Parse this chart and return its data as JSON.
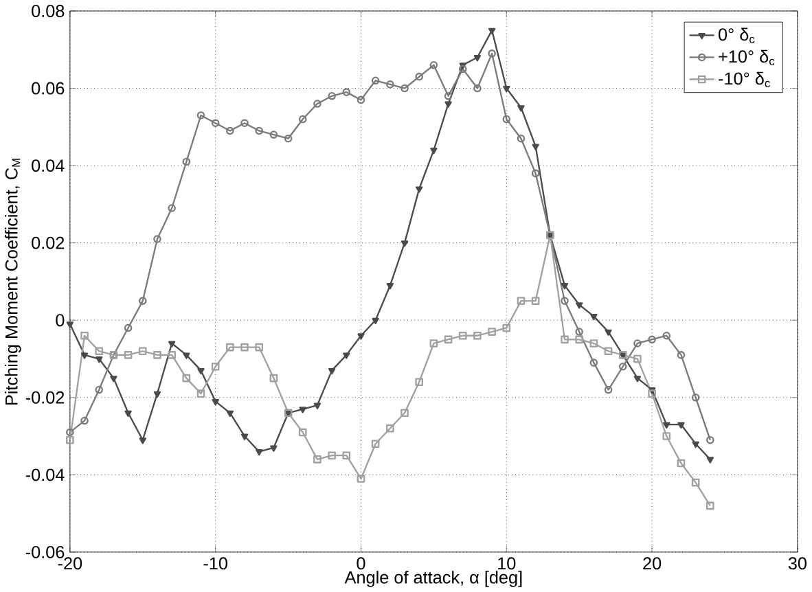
{
  "chart_data": {
    "type": "line",
    "xlabel": "Angle of attack, α [deg]",
    "ylabel": "Pitching Moment Coefficient, C$_{M}$",
    "x": [
      -20,
      -19,
      -18,
      -17,
      -16,
      -15,
      -14,
      -13,
      -12,
      -11,
      -10,
      -9,
      -8,
      -7,
      -6,
      -5,
      -4,
      -3,
      -2,
      -1,
      0,
      1,
      2,
      3,
      4,
      5,
      6,
      7,
      8,
      9,
      10,
      11,
      12,
      13,
      14,
      15,
      16,
      17,
      18,
      19,
      20,
      21,
      22,
      23,
      24
    ],
    "series": [
      {
        "name": "0° δ$_{c}$",
        "color": "#4a4a4a",
        "marker": "triangle",
        "values": [
          -0.001,
          -0.009,
          -0.01,
          -0.015,
          -0.024,
          -0.031,
          -0.019,
          -0.006,
          -0.009,
          -0.013,
          -0.021,
          -0.024,
          -0.03,
          -0.034,
          -0.033,
          -0.024,
          -0.023,
          -0.022,
          -0.013,
          -0.009,
          -0.004,
          0.0,
          0.009,
          0.02,
          0.034,
          0.044,
          0.056,
          0.066,
          0.068,
          0.075,
          0.06,
          0.055,
          0.045,
          0.022,
          0.009,
          0.004,
          0.001,
          -0.003,
          -0.009,
          -0.015,
          -0.018,
          -0.027,
          -0.027,
          -0.032,
          -0.036
        ]
      },
      {
        "name": "+10° δ$_{c}$",
        "color": "#7a7a7a",
        "marker": "circle",
        "values": [
          -0.029,
          -0.026,
          -0.018,
          -0.009,
          -0.002,
          0.005,
          0.021,
          0.029,
          0.041,
          0.053,
          0.051,
          0.049,
          0.051,
          0.049,
          0.048,
          0.047,
          0.052,
          0.056,
          0.058,
          0.059,
          0.057,
          0.062,
          0.061,
          0.06,
          0.063,
          0.066,
          0.058,
          0.065,
          0.06,
          0.069,
          0.052,
          0.047,
          0.038,
          0.022,
          0.005,
          -0.003,
          -0.011,
          -0.018,
          -0.012,
          -0.006,
          -0.005,
          -0.004,
          -0.009,
          -0.02,
          -0.031
        ]
      },
      {
        "name": "-10° δ$_{c}$",
        "color": "#a0a0a0",
        "marker": "square",
        "values": [
          -0.031,
          -0.004,
          -0.008,
          -0.009,
          -0.009,
          -0.008,
          -0.009,
          -0.009,
          -0.015,
          -0.019,
          -0.012,
          -0.007,
          -0.007,
          -0.007,
          -0.015,
          -0.024,
          -0.029,
          -0.036,
          -0.035,
          -0.035,
          -0.041,
          -0.032,
          -0.028,
          -0.024,
          -0.016,
          -0.006,
          -0.005,
          -0.004,
          -0.004,
          -0.003,
          -0.002,
          0.005,
          0.005,
          0.022,
          -0.005,
          -0.005,
          -0.006,
          -0.008,
          -0.009,
          -0.01,
          -0.019,
          -0.03,
          -0.037,
          -0.042,
          -0.048
        ]
      }
    ],
    "xlim": [
      -20,
      30
    ],
    "xticks": [
      -20,
      -10,
      0,
      10,
      20,
      30
    ],
    "ylim": [
      -0.06,
      0.08
    ],
    "yticks": [
      {
        "value": -0.06,
        "label": "-0.06"
      },
      {
        "value": -0.04,
        "label": "-0.04"
      },
      {
        "value": -0.02,
        "label": "-0.02"
      },
      0,
      {
        "value": 0.02,
        "label": "0.02"
      },
      {
        "value": 0.04,
        "label": "0.04"
      },
      {
        "value": 0.06,
        "label": "0.06"
      },
      {
        "value": 0.08,
        "label": "0.08"
      }
    ],
    "grid": true,
    "legend": "top right",
    "line_style": "solid"
  }
}
